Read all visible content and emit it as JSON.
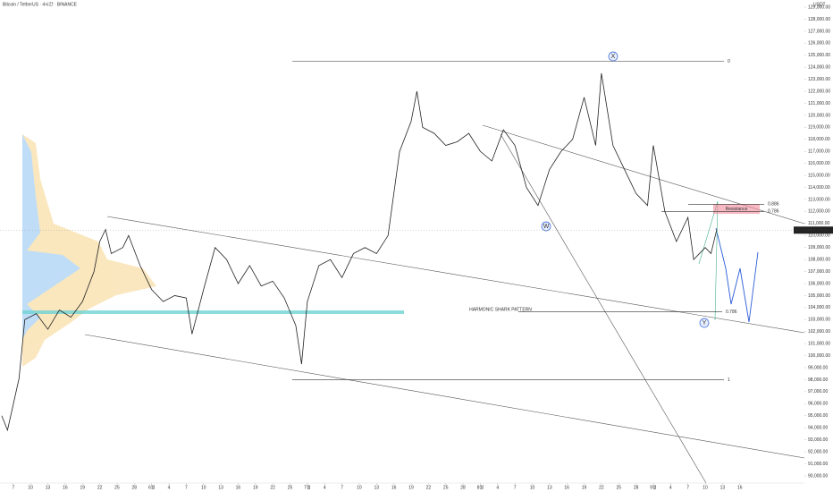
{
  "chart_data": {
    "type": "line",
    "title": "Bitcoin / TetherUS · 4시간 · BINANCE",
    "y_axis_label": "USDT",
    "series": [
      {
        "name": "BTCUSDT",
        "color": "#222222",
        "x": [
          -2,
          -1,
          1,
          2,
          4,
          6,
          8,
          10,
          12,
          14,
          15,
          16,
          17,
          19,
          20,
          22,
          24,
          26,
          28,
          30,
          31,
          33,
          35,
          37,
          39,
          41,
          43,
          45,
          47,
          49,
          50,
          51,
          53,
          55,
          57,
          59,
          61,
          63,
          65,
          67,
          69,
          70,
          71,
          73,
          75,
          77,
          79,
          81,
          83,
          85,
          87,
          89,
          91,
          93,
          95,
          97,
          99,
          101,
          102,
          104,
          106,
          108,
          110,
          111,
          113,
          115,
          117,
          118,
          119,
          120,
          121,
          122
        ],
        "values": [
          95000,
          93800,
          98100,
          103000,
          103500,
          102200,
          103800,
          103200,
          104500,
          107000,
          109500,
          110500,
          108500,
          109000,
          110000,
          107500,
          105500,
          104500,
          105000,
          104800,
          101800,
          105500,
          109000,
          108000,
          106000,
          107500,
          105800,
          106200,
          104800,
          102500,
          99300,
          104500,
          107500,
          108000,
          106500,
          108500,
          109000,
          108500,
          110000,
          117000,
          119500,
          122000,
          119000,
          118500,
          117500,
          117800,
          118500,
          117000,
          116200,
          118800,
          117500,
          114000,
          112500,
          115500,
          117000,
          118000,
          121500,
          117500,
          123500,
          117500,
          115500,
          113500,
          112500,
          117500,
          112000,
          109500,
          111500,
          108000,
          108500,
          109000,
          108500,
          110500
        ]
      }
    ],
    "xlim": [
      -2.3,
      137.2
    ],
    "ylim": [
      89400,
      129600
    ],
    "xticks": [
      {
        "value": 0,
        "label": "7"
      },
      {
        "value": 3,
        "label": "10"
      },
      {
        "value": 6,
        "label": "13"
      },
      {
        "value": 9,
        "label": "16"
      },
      {
        "value": 12,
        "label": "19"
      },
      {
        "value": 15,
        "label": "22"
      },
      {
        "value": 18,
        "label": "25"
      },
      {
        "value": 21,
        "label": "28"
      },
      {
        "value": 24,
        "label": "6월"
      },
      {
        "value": 27,
        "label": "4"
      },
      {
        "value": 30,
        "label": "7"
      },
      {
        "value": 33,
        "label": "10"
      },
      {
        "value": 36,
        "label": "13"
      },
      {
        "value": 39,
        "label": "16"
      },
      {
        "value": 42,
        "label": "19"
      },
      {
        "value": 45,
        "label": "22"
      },
      {
        "value": 48,
        "label": "25"
      },
      {
        "value": 51,
        "label": "7월"
      },
      {
        "value": 54,
        "label": "4"
      },
      {
        "value": 57,
        "label": "7"
      },
      {
        "value": 60,
        "label": "10"
      },
      {
        "value": 63,
        "label": "13"
      },
      {
        "value": 66,
        "label": "16"
      },
      {
        "value": 69,
        "label": "19"
      },
      {
        "value": 72,
        "label": "22"
      },
      {
        "value": 75,
        "label": "25"
      },
      {
        "value": 78,
        "label": "28"
      },
      {
        "value": 81,
        "label": "8월"
      },
      {
        "value": 84,
        "label": "4"
      },
      {
        "value": 87,
        "label": "7"
      },
      {
        "value": 90,
        "label": "10"
      },
      {
        "value": 93,
        "label": "13"
      },
      {
        "value": 96,
        "label": "16"
      },
      {
        "value": 99,
        "label": "19"
      },
      {
        "value": 102,
        "label": "22"
      },
      {
        "value": 105,
        "label": "25"
      },
      {
        "value": 108,
        "label": "28"
      },
      {
        "value": 111,
        "label": "9월"
      },
      {
        "value": 114,
        "label": "4"
      },
      {
        "value": 117,
        "label": "7"
      },
      {
        "value": 120,
        "label": "10"
      },
      {
        "value": 123,
        "label": "13"
      },
      {
        "value": 126,
        "label": "16"
      }
    ],
    "yticks": [
      {
        "value": 90000,
        "label": "90,000.00"
      },
      {
        "value": 91000,
        "label": "91,000.00"
      },
      {
        "value": 92000,
        "label": "92,000.00"
      },
      {
        "value": 93000,
        "label": "93,000.00"
      },
      {
        "value": 94000,
        "label": "94,000.00"
      },
      {
        "value": 95000,
        "label": "95,000.00"
      },
      {
        "value": 96000,
        "label": "96,000.00"
      },
      {
        "value": 97000,
        "label": "97,000.00"
      },
      {
        "value": 98000,
        "label": "98,000.00"
      },
      {
        "value": 99000,
        "label": "99,000.00"
      },
      {
        "value": 100000,
        "label": "100,000.00"
      },
      {
        "value": 101000,
        "label": "101,000.00"
      },
      {
        "value": 102000,
        "label": "102,000.00"
      },
      {
        "value": 103000,
        "label": "103,000.00"
      },
      {
        "value": 104000,
        "label": "104,000.00"
      },
      {
        "value": 105000,
        "label": "105,000.00"
      },
      {
        "value": 106000,
        "label": "106,000.00"
      },
      {
        "value": 107000,
        "label": "107,000.00"
      },
      {
        "value": 108000,
        "label": "108,000.00"
      },
      {
        "value": 109000,
        "label": "109,000.00"
      },
      {
        "value": 110000,
        "label": "110,000.00"
      },
      {
        "value": 111000,
        "label": "111,000.00"
      },
      {
        "value": 112000,
        "label": "112,000.00"
      },
      {
        "value": 113000,
        "label": "113,000.00"
      },
      {
        "value": 114000,
        "label": "114,000.00"
      },
      {
        "value": 115000,
        "label": "115,000.00"
      },
      {
        "value": 116000,
        "label": "116,000.00"
      },
      {
        "value": 117000,
        "label": "117,000.00"
      },
      {
        "value": 118000,
        "label": "118,000.00"
      },
      {
        "value": 119000,
        "label": "119,000.00"
      },
      {
        "value": 120000,
        "label": "120,000.00"
      },
      {
        "value": 121000,
        "label": "121,000.00"
      },
      {
        "value": 122000,
        "label": "122,000.00"
      },
      {
        "value": 123000,
        "label": "123,000.00"
      },
      {
        "value": 124000,
        "label": "124,000.00"
      },
      {
        "value": 125000,
        "label": "125,000.00"
      },
      {
        "value": 126000,
        "label": "126,000.00"
      },
      {
        "value": 127000,
        "label": "127,000.00"
      },
      {
        "value": 128000,
        "label": "128,000.00"
      },
      {
        "value": 129000,
        "label": "129,000.00"
      }
    ],
    "levels": [
      {
        "label": "0",
        "value": 124500
      },
      {
        "label": "1",
        "value": 98000
      },
      {
        "label": "0.886",
        "value": 112600
      },
      {
        "label": "0.786",
        "value": 112000
      },
      {
        "label": "0.786",
        "value": 103650
      }
    ],
    "resistance": {
      "label": "Resistance",
      "low": 111800,
      "high": 112600
    },
    "annotations": [
      "HARMONIC SHARK PATTERN",
      "X",
      "W",
      "Y"
    ],
    "last_price": {
      "name": "BTCUSDT",
      "value": 110449.21,
      "label": "110,449.21"
    }
  }
}
